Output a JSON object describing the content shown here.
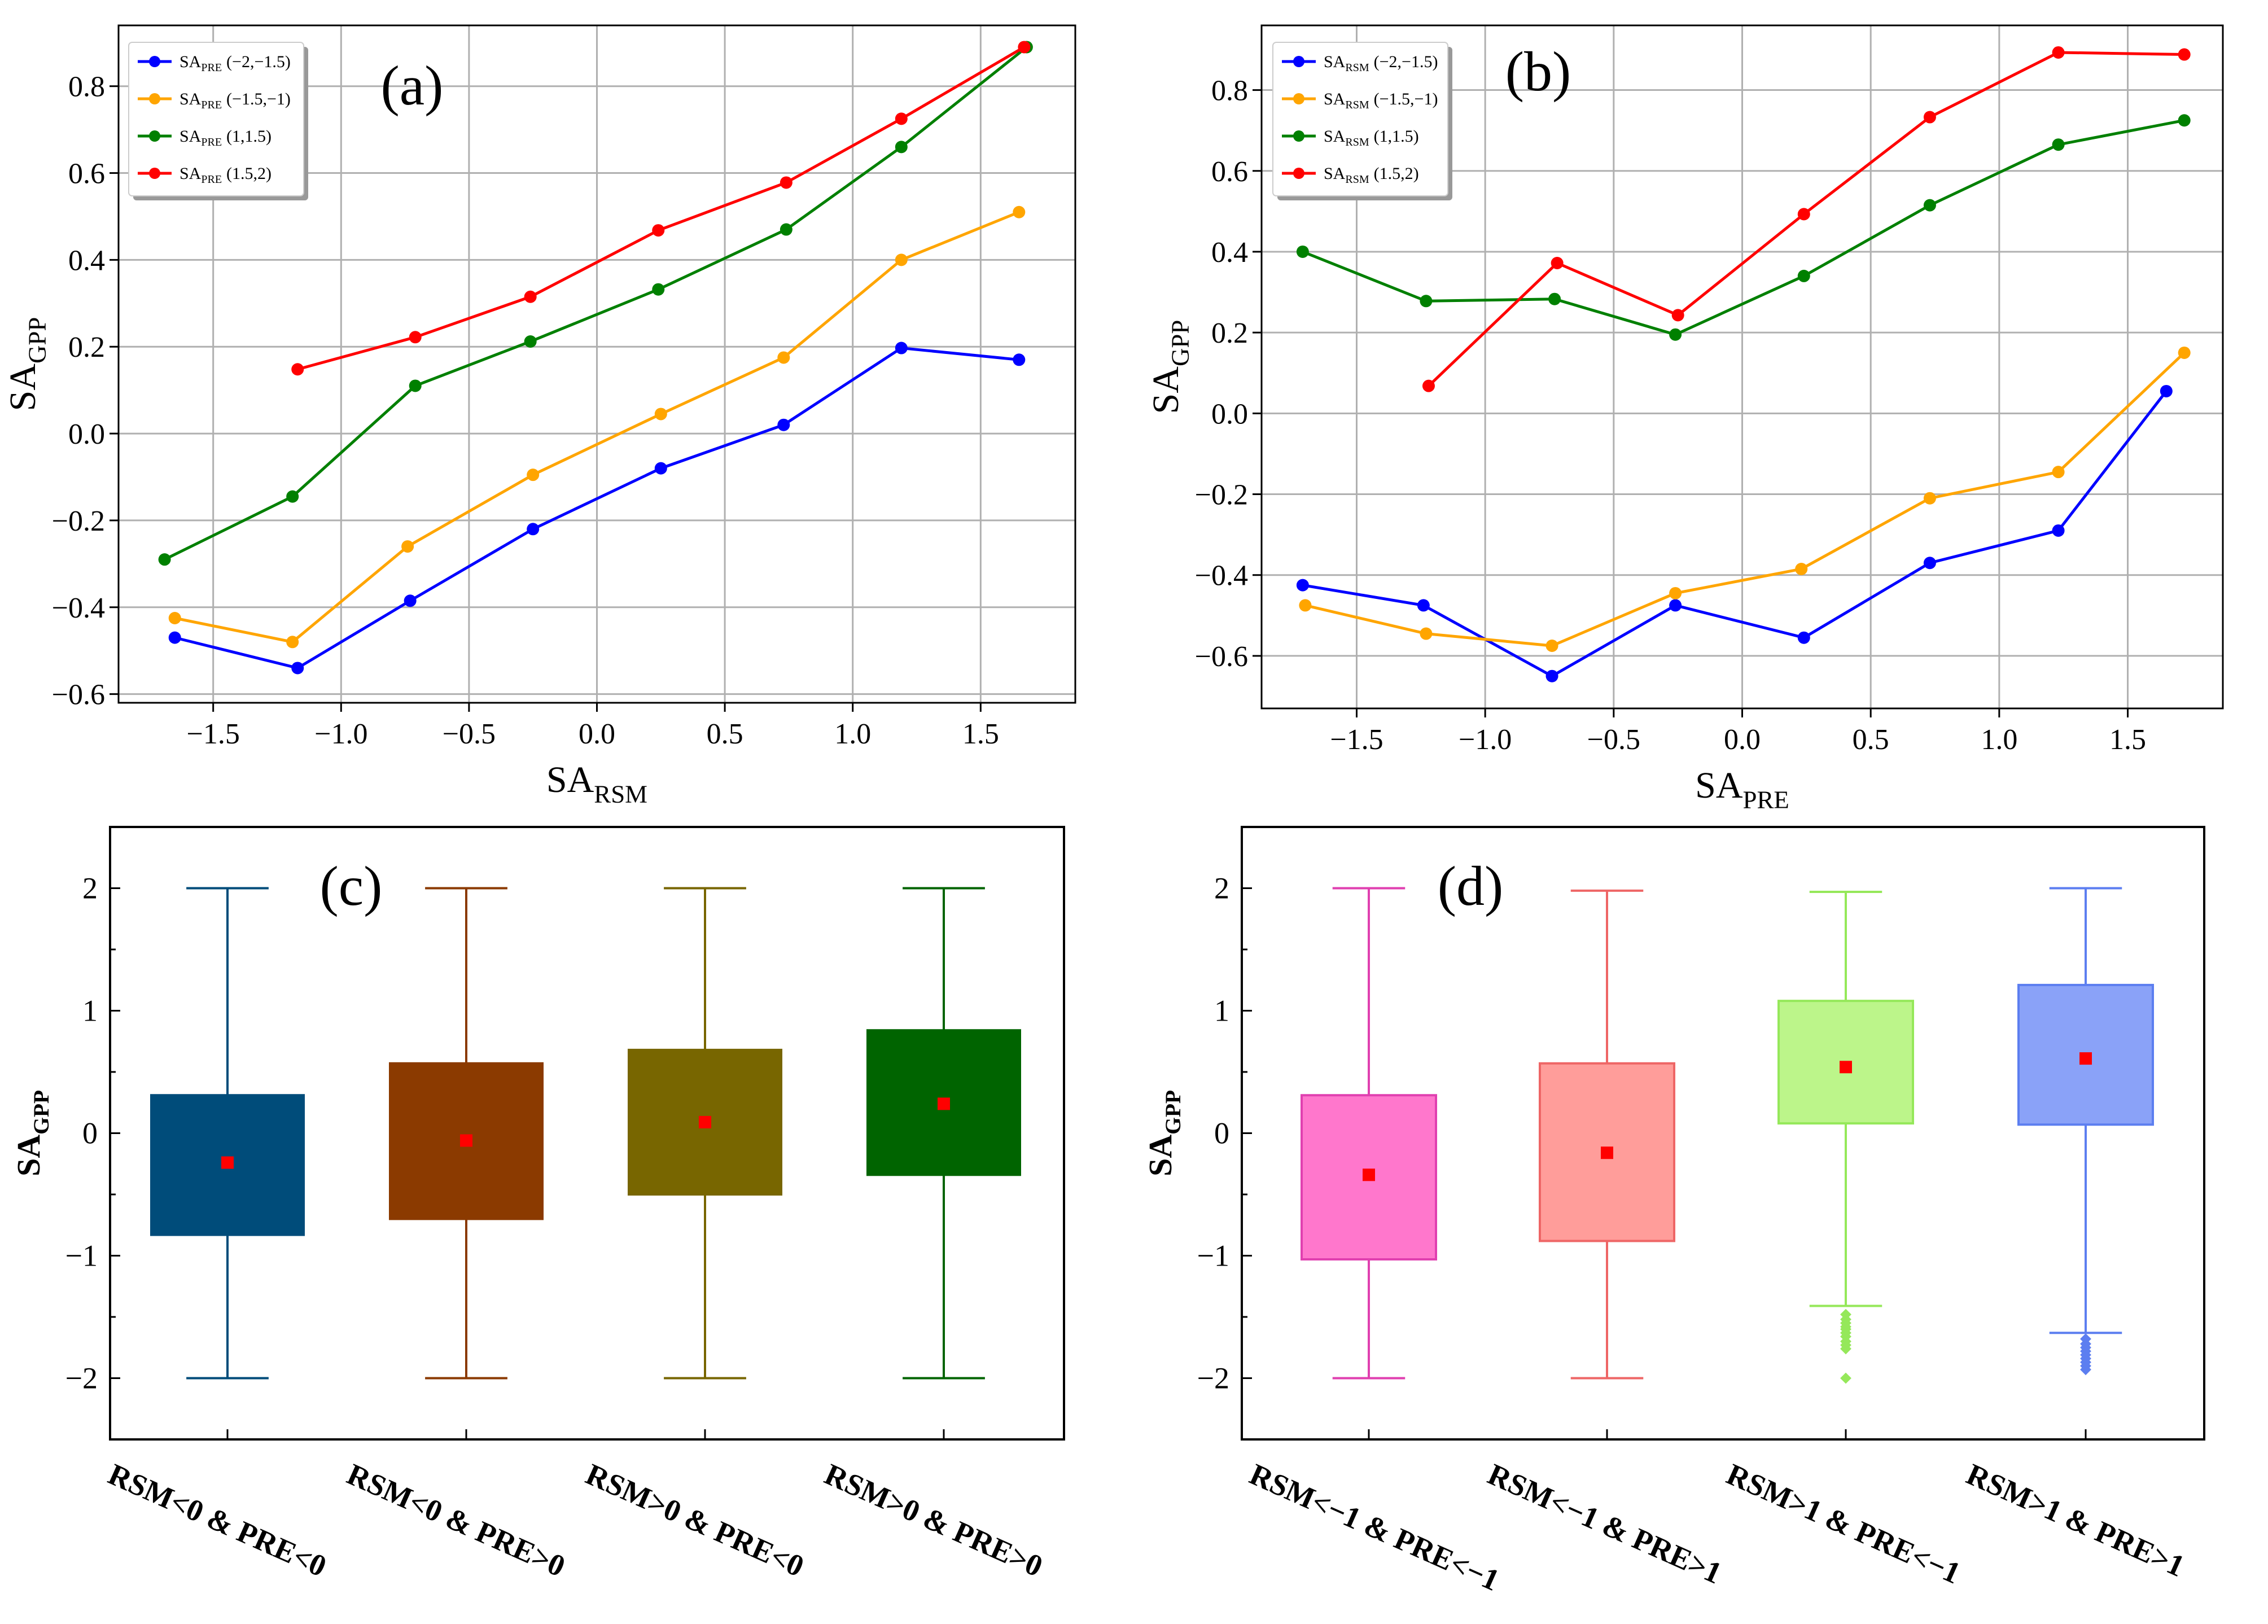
{
  "chart_data": [
    {
      "panel": "(a)",
      "type": "line",
      "xlabel": {
        "base": "SA",
        "sub": "RSM"
      },
      "ylabel": {
        "base": "SA",
        "sub": "GPP"
      },
      "xlim": [
        -1.87,
        1.87
      ],
      "ylim": [
        -0.62,
        0.94
      ],
      "xticks": [
        -1.5,
        -1.0,
        -0.5,
        0.0,
        0.5,
        1.0,
        1.5
      ],
      "xtick_labels": [
        "−1.5",
        "−1.0",
        "−0.5",
        "0.0",
        "0.5",
        "1.0",
        "1.5"
      ],
      "yticks": [
        -0.6,
        -0.4,
        -0.2,
        0.0,
        0.2,
        0.4,
        0.6,
        0.8
      ],
      "ytick_labels": [
        "−0.6",
        "−0.4",
        "−0.2",
        "0.0",
        "0.2",
        "0.4",
        "0.6",
        "0.8"
      ],
      "grid": true,
      "legend_position": "top-left",
      "series": [
        {
          "base": "SA",
          "sub": "PRE",
          "range": "(−2,−1.5)",
          "color": "#0000ff",
          "x": [
            -1.65,
            -1.17,
            -0.73,
            -0.25,
            0.25,
            0.73,
            1.19,
            1.65
          ],
          "y": [
            -0.47,
            -0.54,
            -0.385,
            -0.22,
            -0.08,
            0.02,
            0.197,
            0.17
          ]
        },
        {
          "base": "SA",
          "sub": "PRE",
          "range": "(−1.5,−1)",
          "color": "#ffa500",
          "x": [
            -1.65,
            -1.19,
            -0.74,
            -0.25,
            0.25,
            0.73,
            1.19,
            1.65
          ],
          "y": [
            -0.425,
            -0.48,
            -0.26,
            -0.095,
            0.045,
            0.175,
            0.4,
            0.51
          ]
        },
        {
          "base": "SA",
          "sub": "PRE",
          "range": "(1,1.5)",
          "color": "#008000",
          "x": [
            -1.69,
            -1.19,
            -0.71,
            -0.26,
            0.24,
            0.74,
            1.19,
            1.68
          ],
          "y": [
            -0.29,
            -0.145,
            0.11,
            0.212,
            0.332,
            0.47,
            0.66,
            0.89
          ]
        },
        {
          "base": "SA",
          "sub": "PRE",
          "range": "(1.5,2)",
          "color": "#ff0000",
          "x": [
            -1.17,
            -0.71,
            -0.26,
            0.24,
            0.74,
            1.19,
            1.67
          ],
          "y": [
            0.148,
            0.222,
            0.315,
            0.468,
            0.578,
            0.725,
            0.89
          ]
        }
      ]
    },
    {
      "panel": "(b)",
      "type": "line",
      "xlabel": {
        "base": "SA",
        "sub": "PRE"
      },
      "ylabel": {
        "base": "SA",
        "sub": "GPP"
      },
      "xlim": [
        -1.87,
        1.87
      ],
      "ylim": [
        -0.73,
        0.96
      ],
      "xticks": [
        -1.5,
        -1.0,
        -0.5,
        0.0,
        0.5,
        1.0,
        1.5
      ],
      "xtick_labels": [
        "−1.5",
        "−1.0",
        "−0.5",
        "0.0",
        "0.5",
        "1.0",
        "1.5"
      ],
      "yticks": [
        -0.6,
        -0.4,
        -0.2,
        0.0,
        0.2,
        0.4,
        0.6,
        0.8
      ],
      "ytick_labels": [
        "−0.6",
        "−0.4",
        "−0.2",
        "0.0",
        "0.2",
        "0.4",
        "0.6",
        "0.8"
      ],
      "grid": true,
      "legend_position": "top-left",
      "series": [
        {
          "base": "SA",
          "sub": "RSM",
          "range": "(−2,−1.5)",
          "color": "#0000ff",
          "x": [
            -1.71,
            -1.24,
            -0.74,
            -0.26,
            0.24,
            0.73,
            1.23,
            1.65
          ],
          "y": [
            -0.425,
            -0.475,
            -0.65,
            -0.475,
            -0.555,
            -0.37,
            -0.29,
            0.055
          ]
        },
        {
          "base": "SA",
          "sub": "RSM",
          "range": "(−1.5,−1)",
          "color": "#ffa500",
          "x": [
            -1.7,
            -1.23,
            -0.74,
            -0.26,
            0.23,
            0.73,
            1.23,
            1.72
          ],
          "y": [
            -0.475,
            -0.545,
            -0.575,
            -0.445,
            -0.385,
            -0.21,
            -0.145,
            0.15
          ]
        },
        {
          "base": "SA",
          "sub": "RSM",
          "range": "(1,1.5)",
          "color": "#008000",
          "x": [
            -1.71,
            -1.23,
            -0.73,
            -0.26,
            0.24,
            0.73,
            1.23,
            1.72
          ],
          "y": [
            0.4,
            0.278,
            0.283,
            0.195,
            0.34,
            0.515,
            0.665,
            0.725
          ]
        },
        {
          "base": "SA",
          "sub": "RSM",
          "range": "(1.5,2)",
          "color": "#ff0000",
          "x": [
            -1.22,
            -0.72,
            -0.25,
            0.24,
            0.73,
            1.23,
            1.72
          ],
          "y": [
            0.068,
            0.372,
            0.243,
            0.493,
            0.733,
            0.893,
            0.888
          ]
        }
      ]
    },
    {
      "panel": "(c)",
      "type": "box",
      "ylabel": {
        "base": "SA",
        "sub": "GPP"
      },
      "ylim": [
        -2.5,
        2.5
      ],
      "yticks": [
        -2,
        -1,
        0,
        1,
        2
      ],
      "ytick_labels": [
        "−2",
        "−1",
        "0",
        "1",
        "2"
      ],
      "categories": [
        "RSM<0 & PRE<0",
        "RSM<0 & PRE>0",
        "RSM>0 & PRE<0",
        "RSM>0 & PRE>0"
      ],
      "boxes": [
        {
          "q1": -0.83,
          "q3": 0.31,
          "whisker_low": -2.0,
          "whisker_high": 2.0,
          "mean": -0.24,
          "fill": "#004c7a",
          "edge": "#004c7a",
          "outliers": []
        },
        {
          "q1": -0.7,
          "q3": 0.57,
          "whisker_low": -2.0,
          "whisker_high": 2.0,
          "mean": -0.06,
          "fill": "#8b3a00",
          "edge": "#8b3a00",
          "outliers": []
        },
        {
          "q1": -0.5,
          "q3": 0.68,
          "whisker_low": -2.0,
          "whisker_high": 2.0,
          "mean": 0.09,
          "fill": "#786600",
          "edge": "#786600",
          "outliers": []
        },
        {
          "q1": -0.34,
          "q3": 0.84,
          "whisker_low": -2.0,
          "whisker_high": 2.0,
          "mean": 0.24,
          "fill": "#006400",
          "edge": "#006400",
          "outliers": []
        }
      ]
    },
    {
      "panel": "(d)",
      "type": "box",
      "ylabel": {
        "base": "SA",
        "sub": "GPP"
      },
      "ylim": [
        -2.5,
        2.5
      ],
      "yticks": [
        -2,
        -1,
        0,
        1,
        2
      ],
      "ytick_labels": [
        "−2",
        "−1",
        "0",
        "1",
        "2"
      ],
      "categories": [
        "RSM<−1 & PRE<−1",
        "RSM<−1 & PRE>1",
        "RSM>1 & PRE<−1",
        "RSM>1 & PRE>1"
      ],
      "boxes": [
        {
          "q1": -1.03,
          "q3": 0.31,
          "whisker_low": -2.0,
          "whisker_high": 2.0,
          "mean": -0.34,
          "fill": "#ff77cc",
          "edge": "#e040b0",
          "outliers": []
        },
        {
          "q1": -0.88,
          "q3": 0.57,
          "whisker_low": -2.0,
          "whisker_high": 1.98,
          "mean": -0.16,
          "fill": "#ff9d9a",
          "edge": "#ee6666",
          "outliers": []
        },
        {
          "q1": 0.08,
          "q3": 1.08,
          "whisker_low": -1.41,
          "whisker_high": 1.97,
          "mean": 0.54,
          "fill": "#bcf58a",
          "edge": "#95e85a",
          "outliers": [
            -1.48,
            -1.52,
            -1.55,
            -1.58,
            -1.6,
            -1.63,
            -1.66,
            -1.7,
            -1.73,
            -1.76,
            -2.0
          ]
        },
        {
          "q1": 0.07,
          "q3": 1.21,
          "whisker_low": -1.63,
          "whisker_high": 2.0,
          "mean": 0.61,
          "fill": "#8aa2f8",
          "edge": "#5c7ef0",
          "outliers": [
            -1.68,
            -1.72,
            -1.75,
            -1.78,
            -1.81,
            -1.84,
            -1.87,
            -1.9,
            -1.93
          ]
        }
      ]
    }
  ]
}
